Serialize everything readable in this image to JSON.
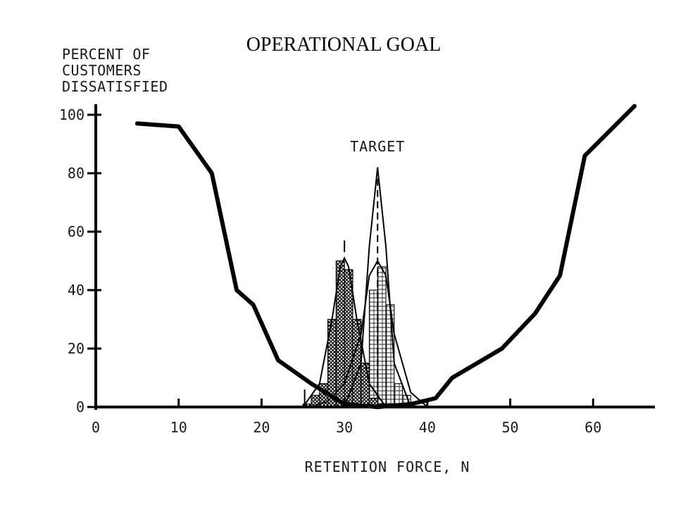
{
  "slide": {
    "title": "OPERATIONAL GOAL"
  },
  "chart_data": {
    "type": "line",
    "title": "OPERATIONAL GOAL",
    "ylabel_lines": [
      "PERCENT OF",
      "CUSTOMERS",
      "DISSATISFIED"
    ],
    "xlabel": "RETENTION FORCE, N",
    "xlim": [
      0,
      67
    ],
    "ylim": [
      0,
      100
    ],
    "x_ticks": [
      "0",
      "10",
      "20",
      "30",
      "40",
      "50",
      "60"
    ],
    "x_tick_values": [
      0,
      10,
      20,
      30,
      40,
      50,
      60
    ],
    "y_ticks": [
      "0",
      "20",
      "40",
      "60",
      "80",
      "100"
    ],
    "y_tick_values": [
      0,
      20,
      40,
      60,
      80,
      100
    ],
    "grid": false,
    "annotations": [
      {
        "text": "TARGET",
        "x": 34,
        "y": 86
      }
    ],
    "series": [
      {
        "kind": "dissatisfaction_curve",
        "x": [
          5,
          10,
          14,
          17,
          19,
          22,
          26,
          30,
          34,
          38,
          41,
          43,
          49,
          53,
          56,
          59,
          65
        ],
        "y": [
          97,
          96,
          80,
          40,
          35,
          16,
          8,
          1,
          0,
          1,
          3,
          10,
          20,
          32,
          45,
          86,
          103
        ]
      },
      {
        "kind": "current_process_distribution",
        "mean": 30,
        "x": [
          25.5,
          26.5,
          27.5,
          28.5,
          29.5,
          30.5,
          31.5,
          32.5,
          33.5,
          34.5
        ],
        "y": [
          1,
          4,
          8,
          30,
          50,
          47,
          30,
          15,
          3,
          1
        ]
      },
      {
        "kind": "target_distribution_wide",
        "mean": 34,
        "x": [
          26,
          28,
          30,
          32,
          33,
          34,
          35,
          36,
          38,
          40
        ],
        "y": [
          0,
          2,
          8,
          25,
          45,
          50,
          45,
          25,
          5,
          0
        ]
      },
      {
        "kind": "target_distribution_narrow",
        "mean": 34,
        "x": [
          30,
          32,
          33,
          34,
          35,
          36,
          38
        ],
        "y": [
          0,
          15,
          55,
          82,
          55,
          15,
          0
        ]
      },
      {
        "kind": "target_histogram",
        "x": [
          32.5,
          33.5,
          34.5,
          35.5,
          36.5,
          37.5
        ],
        "y": [
          15,
          40,
          48,
          35,
          8,
          4
        ]
      }
    ]
  }
}
